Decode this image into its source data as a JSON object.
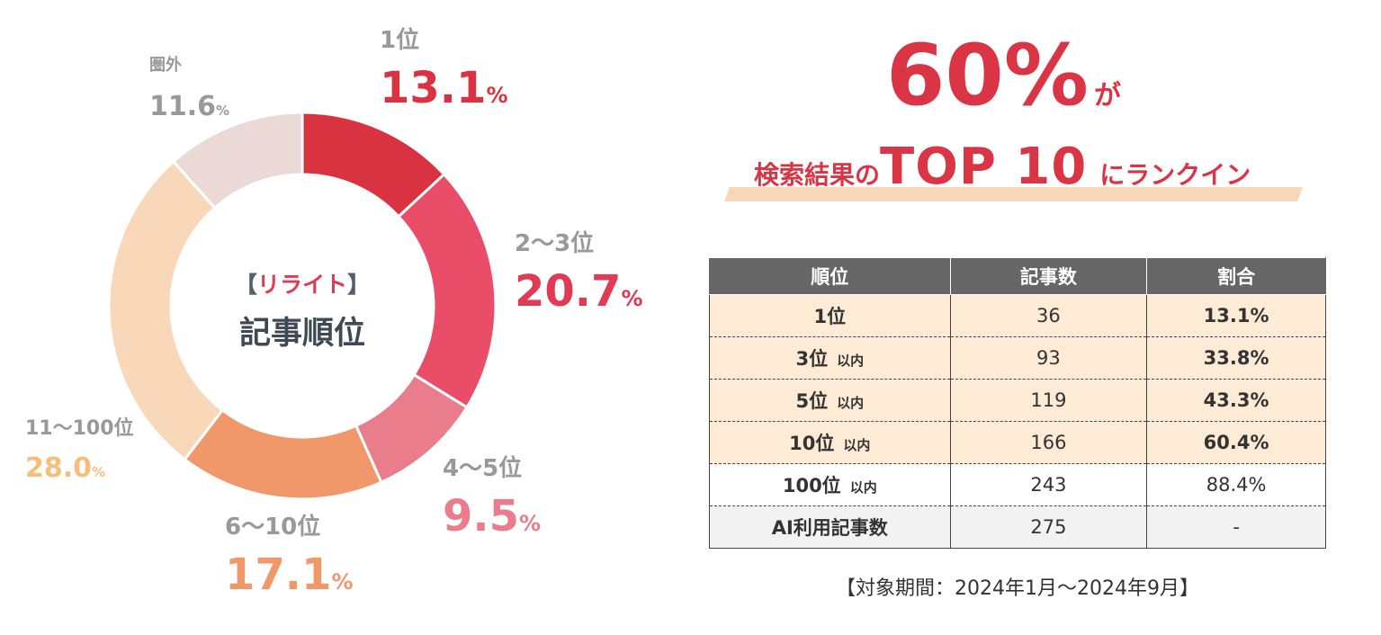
{
  "chart_data": {
    "type": "pie",
    "title": "【リライト】",
    "subtitle": "記事順位",
    "categories": [
      "1位",
      "2〜3位",
      "4〜5位",
      "6〜10位",
      "11〜100位",
      "圏外"
    ],
    "values": [
      13.1,
      20.7,
      9.5,
      17.1,
      28.0,
      11.6
    ],
    "value_labels": [
      "13.1",
      "20.7",
      "9.5",
      "17.1",
      "28.0",
      "11.6"
    ],
    "percent_sign": "%",
    "colors": [
      "#d93240",
      "#e94d67",
      "#e97d8b",
      "#f0986a",
      "#f8d8b8",
      "#ead9d7"
    ],
    "label_colors": [
      "#d93240",
      "#e03a55",
      "#e97d8b",
      "#f0986a",
      "#f6be7a",
      "#999999"
    ]
  },
  "center": {
    "open": "【",
    "title": "リライト",
    "close": "】",
    "subtitle": "記事順位"
  },
  "headline": {
    "big": "60%",
    "small": "が",
    "line_pre": "検索結果の",
    "line_mid": "TOP 10",
    "line_post": "にランクイン"
  },
  "table": {
    "headers": [
      "順位",
      "記事数",
      "割合"
    ],
    "rows": [
      {
        "rank": "1位",
        "suffix": "",
        "count": "36",
        "ratio": "13.1%",
        "bg": "#fdebd6"
      },
      {
        "rank": "3位",
        "suffix": "以内",
        "count": "93",
        "ratio": "33.8%",
        "bg": "#fdebd6"
      },
      {
        "rank": "5位",
        "suffix": "以内",
        "count": "119",
        "ratio": "43.3%",
        "bg": "#fdebd6"
      },
      {
        "rank": "10位",
        "suffix": "以内",
        "count": "166",
        "ratio": "60.4%",
        "bg": "#fdebd6"
      },
      {
        "rank": "100位",
        "suffix": "以内",
        "count": "243",
        "ratio": "88.4%",
        "bg": "#ffffff"
      },
      {
        "rank": "AI利用記事数",
        "suffix": "",
        "count": "275",
        "ratio": "-",
        "bg": "#f2f2f2"
      }
    ]
  },
  "period": "【対象期間：2024年1月〜2024年9月】"
}
